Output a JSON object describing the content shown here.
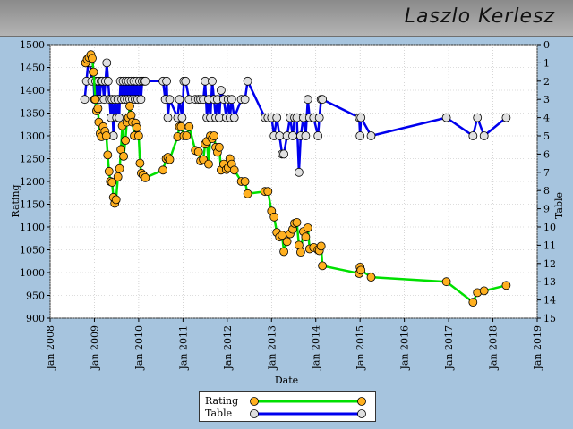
{
  "title": "Laszlo Kerlesz",
  "chart_data": {
    "type": "line",
    "xlabel": "Date",
    "ylabel": "Rating",
    "y2label": "Table",
    "x_ticks": [
      "Jan 2008",
      "Jan 2009",
      "Jan 2010",
      "Jan 2011",
      "Jan 2012",
      "Jan 2013",
      "Jan 2014",
      "Jan 2015",
      "Jan 2016",
      "Jan 2017",
      "Jan 2018",
      "Jan 2019"
    ],
    "xlim": [
      2008.0,
      2019.0
    ],
    "ylim": [
      900,
      1500
    ],
    "y_ticks": [
      900,
      950,
      1000,
      1050,
      1100,
      1150,
      1200,
      1250,
      1300,
      1350,
      1400,
      1450,
      1500
    ],
    "y2lim": [
      0,
      15
    ],
    "y2_ticks": [
      0,
      1,
      2,
      3,
      4,
      5,
      6,
      7,
      8,
      9,
      10,
      11,
      12,
      13,
      14,
      15
    ],
    "grid": true,
    "legend_position": "bottom",
    "series": [
      {
        "name": "Rating",
        "color": "#00e000",
        "marker_color": "#ffb020",
        "axis": "left",
        "points": [
          [
            2008.8,
            1460
          ],
          [
            2008.84,
            1468
          ],
          [
            2008.88,
            1472
          ],
          [
            2008.92,
            1478
          ],
          [
            2008.95,
            1470
          ],
          [
            2008.98,
            1440
          ],
          [
            2009.02,
            1380
          ],
          [
            2009.05,
            1355
          ],
          [
            2009.08,
            1360
          ],
          [
            2009.1,
            1330
          ],
          [
            2009.13,
            1305
          ],
          [
            2009.16,
            1298
          ],
          [
            2009.2,
            1320
          ],
          [
            2009.24,
            1310
          ],
          [
            2009.27,
            1300
          ],
          [
            2009.3,
            1258
          ],
          [
            2009.33,
            1222
          ],
          [
            2009.36,
            1200
          ],
          [
            2009.4,
            1198
          ],
          [
            2009.43,
            1165
          ],
          [
            2009.46,
            1152
          ],
          [
            2009.49,
            1160
          ],
          [
            2009.53,
            1210
          ],
          [
            2009.57,
            1228
          ],
          [
            2009.6,
            1270
          ],
          [
            2009.63,
            1322
          ],
          [
            2009.66,
            1255
          ],
          [
            2009.7,
            1290
          ],
          [
            2009.73,
            1330
          ],
          [
            2009.77,
            1340
          ],
          [
            2009.8,
            1365
          ],
          [
            2009.83,
            1345
          ],
          [
            2009.86,
            1330
          ],
          [
            2009.9,
            1300
          ],
          [
            2009.93,
            1328
          ],
          [
            2009.96,
            1318
          ],
          [
            2010.0,
            1300
          ],
          [
            2010.03,
            1240
          ],
          [
            2010.06,
            1218
          ],
          [
            2010.1,
            1214
          ],
          [
            2010.15,
            1208
          ],
          [
            2010.55,
            1225
          ],
          [
            2010.62,
            1250
          ],
          [
            2010.66,
            1253
          ],
          [
            2010.7,
            1248
          ],
          [
            2010.88,
            1298
          ],
          [
            2010.92,
            1320
          ],
          [
            2010.96,
            1320
          ],
          [
            2011.02,
            1300
          ],
          [
            2011.08,
            1300
          ],
          [
            2011.14,
            1320
          ],
          [
            2011.28,
            1268
          ],
          [
            2011.35,
            1265
          ],
          [
            2011.4,
            1245
          ],
          [
            2011.46,
            1248
          ],
          [
            2011.5,
            1282
          ],
          [
            2011.54,
            1288
          ],
          [
            2011.58,
            1238
          ],
          [
            2011.62,
            1300
          ],
          [
            2011.66,
            1294
          ],
          [
            2011.7,
            1300
          ],
          [
            2011.74,
            1275
          ],
          [
            2011.78,
            1264
          ],
          [
            2011.82,
            1275
          ],
          [
            2011.86,
            1225
          ],
          [
            2011.92,
            1238
          ],
          [
            2011.98,
            1226
          ],
          [
            2012.02,
            1230
          ],
          [
            2012.06,
            1250
          ],
          [
            2012.1,
            1238
          ],
          [
            2012.16,
            1225
          ],
          [
            2012.32,
            1200
          ],
          [
            2012.4,
            1200
          ],
          [
            2012.46,
            1173
          ],
          [
            2012.85,
            1178
          ],
          [
            2012.92,
            1178
          ],
          [
            2013.0,
            1135
          ],
          [
            2013.06,
            1122
          ],
          [
            2013.12,
            1088
          ],
          [
            2013.18,
            1078
          ],
          [
            2013.24,
            1082
          ],
          [
            2013.28,
            1046
          ],
          [
            2013.35,
            1068
          ],
          [
            2013.42,
            1085
          ],
          [
            2013.48,
            1095
          ],
          [
            2013.52,
            1108
          ],
          [
            2013.57,
            1110
          ],
          [
            2013.62,
            1060
          ],
          [
            2013.66,
            1045
          ],
          [
            2013.72,
            1090
          ],
          [
            2013.77,
            1078
          ],
          [
            2013.82,
            1098
          ],
          [
            2013.86,
            1052
          ],
          [
            2013.95,
            1055
          ],
          [
            2014.05,
            1050
          ],
          [
            2014.08,
            1048
          ],
          [
            2014.12,
            1058
          ],
          [
            2014.15,
            1015
          ],
          [
            2014.98,
            998
          ],
          [
            2015.0,
            1012
          ],
          [
            2015.02,
            1005
          ],
          [
            2015.25,
            990
          ],
          [
            2016.95,
            980
          ],
          [
            2017.55,
            935
          ],
          [
            2017.65,
            956
          ],
          [
            2017.8,
            960
          ],
          [
            2018.3,
            972
          ]
        ]
      },
      {
        "name": "Table",
        "color": "#0000ee",
        "marker_color": "#e0e0e0",
        "axis": "right",
        "points": [
          [
            2008.78,
            3
          ],
          [
            2008.82,
            2
          ],
          [
            2008.86,
            1
          ],
          [
            2008.9,
            1
          ],
          [
            2008.94,
            2
          ],
          [
            2008.97,
            1.5
          ],
          [
            2009.0,
            3
          ],
          [
            2009.03,
            2
          ],
          [
            2009.06,
            3
          ],
          [
            2009.09,
            2
          ],
          [
            2009.12,
            3
          ],
          [
            2009.15,
            2
          ],
          [
            2009.18,
            2
          ],
          [
            2009.22,
            3
          ],
          [
            2009.25,
            2
          ],
          [
            2009.28,
            1
          ],
          [
            2009.31,
            2
          ],
          [
            2009.34,
            3
          ],
          [
            2009.37,
            4
          ],
          [
            2009.4,
            3
          ],
          [
            2009.43,
            5
          ],
          [
            2009.46,
            3
          ],
          [
            2009.5,
            4
          ],
          [
            2009.53,
            3
          ],
          [
            2009.56,
            4
          ],
          [
            2009.59,
            2
          ],
          [
            2009.62,
            3
          ],
          [
            2009.65,
            2
          ],
          [
            2009.68,
            3
          ],
          [
            2009.71,
            2
          ],
          [
            2009.74,
            3
          ],
          [
            2009.77,
            2
          ],
          [
            2009.8,
            3
          ],
          [
            2009.83,
            2
          ],
          [
            2009.86,
            3
          ],
          [
            2009.89,
            2
          ],
          [
            2009.92,
            3
          ],
          [
            2009.95,
            2
          ],
          [
            2009.98,
            3
          ],
          [
            2010.02,
            2
          ],
          [
            2010.05,
            3
          ],
          [
            2010.08,
            2
          ],
          [
            2010.12,
            2
          ],
          [
            2010.15,
            2
          ],
          [
            2010.55,
            2
          ],
          [
            2010.6,
            3
          ],
          [
            2010.63,
            2
          ],
          [
            2010.66,
            4
          ],
          [
            2010.7,
            3
          ],
          [
            2010.88,
            4
          ],
          [
            2010.92,
            3
          ],
          [
            2010.98,
            4
          ],
          [
            2011.02,
            2
          ],
          [
            2011.06,
            2
          ],
          [
            2011.14,
            3
          ],
          [
            2011.28,
            3
          ],
          [
            2011.35,
            3
          ],
          [
            2011.4,
            3
          ],
          [
            2011.46,
            3
          ],
          [
            2011.5,
            2
          ],
          [
            2011.54,
            4
          ],
          [
            2011.58,
            3
          ],
          [
            2011.62,
            4
          ],
          [
            2011.66,
            2
          ],
          [
            2011.7,
            3
          ],
          [
            2011.74,
            4
          ],
          [
            2011.78,
            3
          ],
          [
            2011.82,
            4
          ],
          [
            2011.86,
            2.5
          ],
          [
            2011.92,
            3
          ],
          [
            2011.98,
            4
          ],
          [
            2012.02,
            3
          ],
          [
            2012.06,
            4
          ],
          [
            2012.1,
            3
          ],
          [
            2012.16,
            4
          ],
          [
            2012.32,
            3
          ],
          [
            2012.4,
            3
          ],
          [
            2012.46,
            2
          ],
          [
            2012.85,
            4
          ],
          [
            2012.92,
            4
          ],
          [
            2013.0,
            4
          ],
          [
            2013.06,
            5
          ],
          [
            2013.12,
            4
          ],
          [
            2013.18,
            5
          ],
          [
            2013.24,
            6
          ],
          [
            2013.28,
            6
          ],
          [
            2013.35,
            5
          ],
          [
            2013.42,
            4
          ],
          [
            2013.48,
            5
          ],
          [
            2013.52,
            4
          ],
          [
            2013.57,
            4
          ],
          [
            2013.62,
            7
          ],
          [
            2013.66,
            5
          ],
          [
            2013.72,
            4
          ],
          [
            2013.77,
            5
          ],
          [
            2013.82,
            3
          ],
          [
            2013.86,
            4
          ],
          [
            2013.95,
            4
          ],
          [
            2014.05,
            5
          ],
          [
            2014.08,
            4
          ],
          [
            2014.12,
            3
          ],
          [
            2014.15,
            3
          ],
          [
            2014.98,
            4
          ],
          [
            2015.0,
            5
          ],
          [
            2015.02,
            4
          ],
          [
            2015.25,
            5
          ],
          [
            2016.95,
            4
          ],
          [
            2017.55,
            5
          ],
          [
            2017.65,
            4
          ],
          [
            2017.8,
            5
          ],
          [
            2018.3,
            4
          ]
        ]
      }
    ]
  }
}
